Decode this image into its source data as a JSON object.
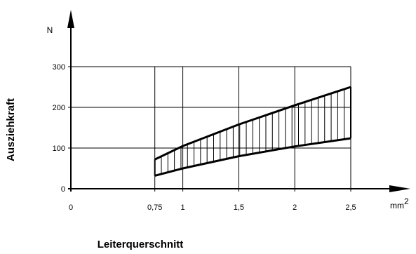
{
  "chart_data": {
    "type": "area",
    "xlabel": "Leiterquerschnitt",
    "ylabel": "Auszieh­kraft",
    "x_unit": "mm",
    "x_unit_sup": "2",
    "y_unit": "N",
    "x_ticks": [
      {
        "value": 0,
        "label": "0"
      },
      {
        "value": 0.75,
        "label": "0,75"
      },
      {
        "value": 1,
        "label": "1"
      },
      {
        "value": 1.5,
        "label": "1,5"
      },
      {
        "value": 2,
        "label": "2"
      },
      {
        "value": 2.5,
        "label": "2,5"
      }
    ],
    "y_ticks": [
      {
        "value": 0,
        "label": "0"
      },
      {
        "value": 100,
        "label": "100"
      },
      {
        "value": 200,
        "label": "200"
      },
      {
        "value": 300,
        "label": "300"
      }
    ],
    "xlim": [
      0,
      2.5
    ],
    "ylim": [
      0,
      300
    ],
    "grid": true,
    "series": [
      {
        "x": [
          0.75,
          1.0,
          1.5,
          2.0,
          2.5
        ],
        "values": [
          72,
          105,
          158,
          205,
          250
        ]
      },
      {
        "x": [
          0.75,
          1.0,
          1.5,
          2.0,
          2.5
        ],
        "values": [
          32,
          50,
          80,
          104,
          124
        ]
      }
    ]
  }
}
